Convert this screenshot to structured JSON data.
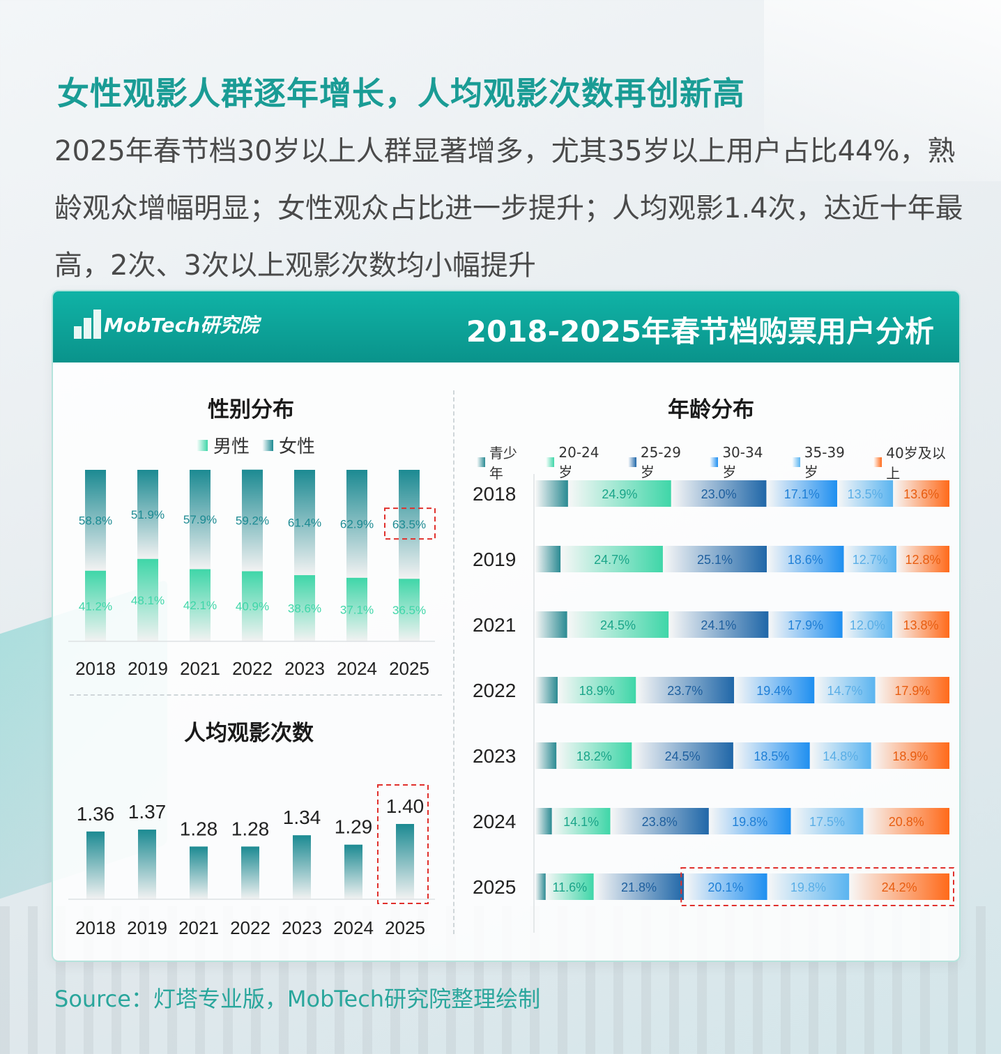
{
  "headline": "女性观影人群逐年增长，人均观影次数再创新高",
  "intro": "2025年春节档30岁以上人群显著增多，尤其35岁以上用户占比44%，熟龄观众增幅明显；女性观众占比进一步提升；人均观影1.4次，达近十年最高，2次、3次以上观影次数均小幅提升",
  "card": {
    "logo_text": "MobTech研究院",
    "title": "2018-2025年春节档购票用户分析"
  },
  "source": "Source：灯塔专业版，MobTech研究院整理绘制",
  "colors": {
    "brand": "#10a89d",
    "male": "#3fd6a8",
    "female": "#1c8a92",
    "highlight_box": "#e0302c",
    "age_teen": "#2a8a92",
    "age_20_24": "#3fd6a8",
    "age_25_29": "#2067a8",
    "age_30_34": "#1f8ff0",
    "age_35_39": "#5ab4f0",
    "age_40_plus": "#ff6a1a"
  },
  "chart_data": [
    {
      "id": "gender",
      "type": "bar",
      "stacked": true,
      "title": "性别分布",
      "categories": [
        "2018",
        "2019",
        "2021",
        "2022",
        "2023",
        "2024",
        "2025"
      ],
      "series": [
        {
          "name": "男性",
          "values": [
            41.2,
            48.1,
            42.1,
            40.9,
            38.6,
            37.1,
            36.5
          ],
          "labels": [
            "41.2%",
            "48.1%",
            "42.1%",
            "40.9%",
            "38.6%",
            "37.1%",
            "36.5%"
          ]
        },
        {
          "name": "女性",
          "values": [
            58.8,
            51.9,
            57.9,
            59.2,
            61.4,
            62.9,
            63.5
          ],
          "labels": [
            "58.8%",
            "51.9%",
            "57.9%",
            "59.2%",
            "61.4%",
            "62.9%",
            "63.5%"
          ]
        }
      ],
      "ylim": [
        0,
        100
      ],
      "highlight": {
        "category": "2025",
        "series": "女性"
      }
    },
    {
      "id": "visits",
      "type": "bar",
      "title": "人均观影次数",
      "categories": [
        "2018",
        "2019",
        "2021",
        "2022",
        "2023",
        "2024",
        "2025"
      ],
      "values": [
        1.36,
        1.37,
        1.28,
        1.28,
        1.34,
        1.29,
        1.4
      ],
      "labels": [
        "1.36",
        "1.37",
        "1.28",
        "1.28",
        "1.34",
        "1.29",
        "1.40"
      ],
      "highlight": {
        "category": "2025"
      }
    },
    {
      "id": "age",
      "type": "bar",
      "orientation": "horizontal",
      "stacked": true,
      "title": "年龄分布",
      "categories": [
        "2018",
        "2019",
        "2021",
        "2022",
        "2023",
        "2024",
        "2025"
      ],
      "series": [
        {
          "name": "青少年",
          "values": [
            7.9,
            6.1,
            7.7,
            5.4,
            5.1,
            4.0,
            2.5
          ],
          "labels": [
            "",
            "",
            "",
            "",
            "",
            "",
            ""
          ]
        },
        {
          "name": "20-24岁",
          "values": [
            24.9,
            24.7,
            24.5,
            18.9,
            18.2,
            14.1,
            11.6
          ],
          "labels": [
            "24.9%",
            "24.7%",
            "24.5%",
            "18.9%",
            "18.2%",
            "14.1%",
            "11.6%"
          ]
        },
        {
          "name": "25-29岁",
          "values": [
            23.0,
            25.1,
            24.1,
            23.7,
            24.5,
            23.8,
            21.8
          ],
          "labels": [
            "23.0%",
            "25.1%",
            "24.1%",
            "23.7%",
            "24.5%",
            "23.8%",
            "21.8%"
          ]
        },
        {
          "name": "30-34岁",
          "values": [
            17.1,
            18.6,
            17.9,
            19.4,
            18.5,
            19.8,
            20.1
          ],
          "labels": [
            "17.1%",
            "18.6%",
            "17.9%",
            "19.4%",
            "18.5%",
            "19.8%",
            "20.1%"
          ]
        },
        {
          "name": "35-39岁",
          "values": [
            13.5,
            12.7,
            12.0,
            14.7,
            14.8,
            17.5,
            19.8
          ],
          "labels": [
            "13.5%",
            "12.7%",
            "12.0%",
            "14.7%",
            "14.8%",
            "17.5%",
            "19.8%"
          ]
        },
        {
          "name": "40岁及以上",
          "values": [
            13.6,
            12.8,
            13.8,
            17.9,
            18.9,
            20.8,
            24.2
          ],
          "labels": [
            "13.6%",
            "12.8%",
            "13.8%",
            "17.9%",
            "18.9%",
            "20.8%",
            "24.2%"
          ]
        }
      ],
      "xlim": [
        0,
        100
      ],
      "highlight": {
        "category": "2025",
        "series_from": "30-34岁"
      }
    }
  ]
}
